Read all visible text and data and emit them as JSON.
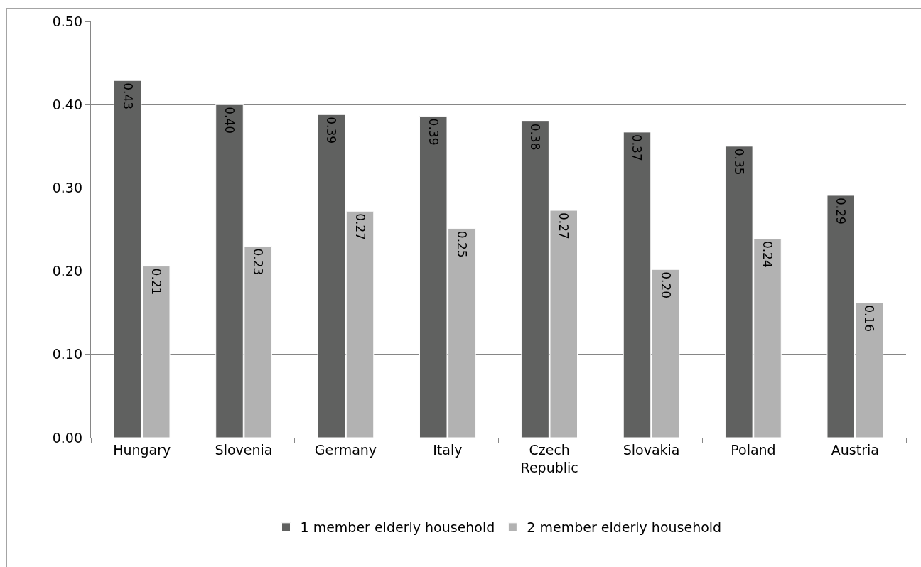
{
  "chart_data": {
    "type": "bar",
    "categories": [
      "Hungary",
      "Slovenia",
      "Germany",
      "Italy",
      "Czech Republic",
      "Slovakia",
      "Poland",
      "Austria"
    ],
    "series": [
      {
        "name": "1 member elderly household",
        "color": "#606160",
        "values": [
          0.429,
          0.4,
          0.388,
          0.386,
          0.38,
          0.367,
          0.35,
          0.291
        ],
        "value_labels": [
          "0.43",
          "0.40",
          "0.39",
          "0.39",
          "0.38",
          "0.37",
          "0.35",
          "0.29"
        ]
      },
      {
        "name": "2 member elderly household",
        "color": "#b2b2b2",
        "values": [
          0.206,
          0.23,
          0.272,
          0.251,
          0.273,
          0.202,
          0.239,
          0.162
        ],
        "value_labels": [
          "0.21",
          "0.23",
          "0.27",
          "0.25",
          "0.27",
          "0.20",
          "0.24",
          "0.16"
        ]
      }
    ],
    "ylim": [
      0,
      0.5
    ],
    "yticks": [
      {
        "value": 0,
        "label": "0.00"
      },
      {
        "value": 0.1,
        "label": "0.10"
      },
      {
        "value": 0.2,
        "label": "0.20"
      },
      {
        "value": 0.3,
        "label": "0.30"
      },
      {
        "value": 0.4,
        "label": "0.40"
      },
      {
        "value": 0.5,
        "label": "0.50"
      }
    ],
    "grid": "y",
    "legend": "bottom"
  }
}
